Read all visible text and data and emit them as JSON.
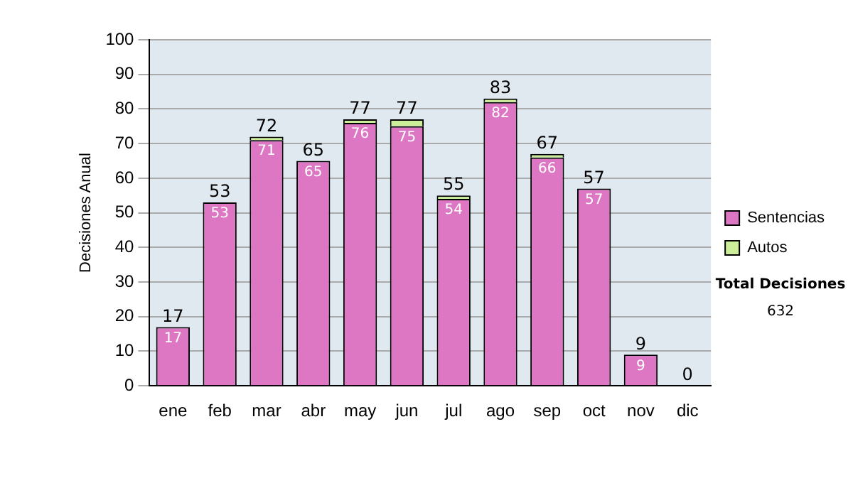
{
  "chart_data": {
    "type": "bar",
    "ylabel": "Decisiones Anual",
    "categories": [
      "ene",
      "feb",
      "mar",
      "abr",
      "may",
      "jun",
      "jul",
      "ago",
      "sep",
      "oct",
      "nov",
      "dic"
    ],
    "series": [
      {
        "name": "Sentencias",
        "color": "#dd77c4",
        "values": [
          17,
          53,
          71,
          65,
          76,
          75,
          54,
          82,
          66,
          57,
          9,
          0
        ],
        "value_labels": [
          "17",
          "53",
          "71",
          "65",
          "76",
          "75",
          "54",
          "82",
          "66",
          "57",
          "9",
          null
        ]
      },
      {
        "name": "Autos",
        "color": "#ccee99",
        "values": [
          0,
          0,
          1,
          0,
          1,
          2,
          1,
          1,
          1,
          0,
          0,
          0
        ]
      }
    ],
    "stacked": true,
    "totals": [
      "17",
      "53",
      "72",
      "65",
      "77",
      "77",
      "55",
      "83",
      "67",
      "57",
      "9",
      "0"
    ],
    "ylim": [
      0,
      100
    ],
    "yticks": [
      0,
      10,
      20,
      30,
      40,
      50,
      60,
      70,
      80,
      90,
      100
    ],
    "grid": "y",
    "legend": "right",
    "annotations": [
      "Total Decisiones",
      "632"
    ]
  }
}
